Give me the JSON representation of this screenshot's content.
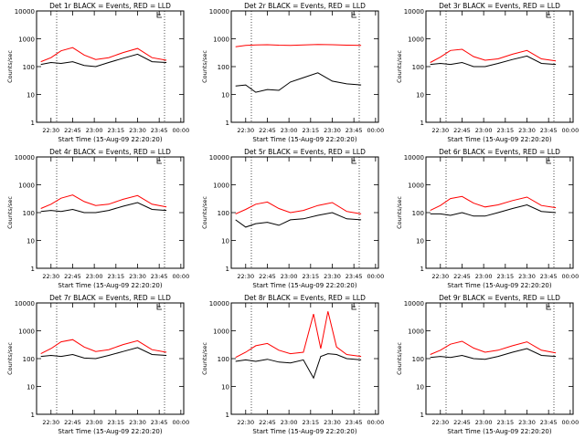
{
  "chart_data": [
    {
      "type": "line",
      "title": "Det 1r BLACK = Events, RED = LLD",
      "ylabel": "Counts/sec",
      "xlabel": "Start Time (15-Aug-09 22:20:20)",
      "x_ticks": [
        "22:30",
        "22:45",
        "23:00",
        "23:15",
        "23:30",
        "23:45",
        "00:00"
      ],
      "y_ticks": [
        "1",
        "10",
        "100",
        "1000",
        "10000"
      ],
      "ylim": [
        1,
        10000
      ],
      "y_scale": "log",
      "x": [
        "22:23",
        "22:30",
        "22:37",
        "22:45",
        "22:53",
        "23:01",
        "23:10",
        "23:20",
        "23:30",
        "23:40",
        "23:50"
      ],
      "series": [
        {
          "name": "RED",
          "values": [
            150,
            210,
            370,
            480,
            260,
            180,
            210,
            320,
            450,
            210,
            170
          ]
        },
        {
          "name": "BLACK",
          "values": [
            120,
            140,
            130,
            150,
            110,
            100,
            140,
            200,
            280,
            150,
            140
          ]
        }
      ]
    },
    {
      "type": "line",
      "title": "Det 2r BLACK = Events, RED = LLD",
      "ylabel": "Counts/sec",
      "xlabel": "Start Time (15-Aug-09 22:20:20)",
      "x_ticks": [
        "22:30",
        "22:45",
        "23:00",
        "23:15",
        "23:30",
        "23:45",
        "00:00"
      ],
      "y_ticks": [
        "1",
        "10",
        "100",
        "1000",
        "10000"
      ],
      "ylim": [
        1,
        10000
      ],
      "y_scale": "log",
      "x": [
        "22:23",
        "22:30",
        "22:37",
        "22:45",
        "22:53",
        "23:01",
        "23:10",
        "23:20",
        "23:30",
        "23:40",
        "23:50"
      ],
      "series": [
        {
          "name": "RED",
          "values": [
            520,
            580,
            600,
            610,
            590,
            580,
            600,
            620,
            610,
            590,
            580
          ]
        },
        {
          "name": "BLACK",
          "values": [
            20,
            22,
            12,
            15,
            14,
            28,
            40,
            60,
            30,
            24,
            22
          ]
        }
      ]
    },
    {
      "type": "line",
      "title": "Det 3r BLACK = Events, RED = LLD",
      "ylabel": "Counts/sec",
      "xlabel": "Start Time (15-Aug-09 22:20:20)",
      "x_ticks": [
        "22:30",
        "22:45",
        "23:00",
        "23:15",
        "23:30",
        "23:45",
        "00:00"
      ],
      "y_ticks": [
        "1",
        "10",
        "100",
        "1000",
        "10000"
      ],
      "ylim": [
        1,
        10000
      ],
      "y_scale": "log",
      "x": [
        "22:23",
        "22:30",
        "22:37",
        "22:45",
        "22:53",
        "23:01",
        "23:10",
        "23:20",
        "23:30",
        "23:40",
        "23:50"
      ],
      "series": [
        {
          "name": "RED",
          "values": [
            140,
            220,
            380,
            420,
            230,
            170,
            190,
            280,
            380,
            190,
            160
          ]
        },
        {
          "name": "BLACK",
          "values": [
            120,
            130,
            120,
            140,
            100,
            100,
            130,
            180,
            240,
            130,
            120
          ]
        }
      ]
    },
    {
      "type": "line",
      "title": "Det 4r BLACK = Events, RED = LLD",
      "ylabel": "Counts/sec",
      "xlabel": "Start Time (15-Aug-09 22:20:20)",
      "x_ticks": [
        "22:30",
        "22:45",
        "23:00",
        "23:15",
        "23:30",
        "23:45",
        "00:00"
      ],
      "y_ticks": [
        "1",
        "10",
        "100",
        "1000",
        "10000"
      ],
      "ylim": [
        1,
        10000
      ],
      "y_scale": "log",
      "x": [
        "22:23",
        "22:30",
        "22:37",
        "22:45",
        "22:53",
        "23:01",
        "23:10",
        "23:20",
        "23:30",
        "23:40",
        "23:50"
      ],
      "series": [
        {
          "name": "RED",
          "values": [
            140,
            200,
            330,
            430,
            250,
            180,
            200,
            300,
            410,
            200,
            160
          ]
        },
        {
          "name": "BLACK",
          "values": [
            110,
            120,
            110,
            130,
            100,
            100,
            120,
            170,
            230,
            130,
            120
          ]
        }
      ]
    },
    {
      "type": "line",
      "title": "Det 5r BLACK = Events, RED = LLD",
      "ylabel": "Counts/sec",
      "xlabel": "Start Time (15-Aug-09 22:20:20)",
      "x_ticks": [
        "22:30",
        "22:45",
        "23:00",
        "23:15",
        "23:30",
        "23:45",
        "00:00"
      ],
      "y_ticks": [
        "1",
        "10",
        "100",
        "1000",
        "10000"
      ],
      "ylim": [
        1,
        10000
      ],
      "y_scale": "log",
      "x": [
        "22:23",
        "22:30",
        "22:37",
        "22:45",
        "22:53",
        "23:01",
        "23:10",
        "23:20",
        "23:30",
        "23:40",
        "23:50"
      ],
      "series": [
        {
          "name": "RED",
          "values": [
            90,
            130,
            200,
            240,
            140,
            100,
            120,
            180,
            230,
            110,
            90
          ]
        },
        {
          "name": "BLACK",
          "values": [
            55,
            30,
            40,
            45,
            35,
            55,
            60,
            80,
            100,
            60,
            55
          ]
        }
      ]
    },
    {
      "type": "line",
      "title": "Det 6r BLACK = Events, RED = LLD",
      "ylabel": "Counts/sec",
      "xlabel": "Start Time (15-Aug-09 22:20:20)",
      "x_ticks": [
        "22:30",
        "22:45",
        "23:00",
        "23:15",
        "23:30",
        "23:45",
        "00:00"
      ],
      "y_ticks": [
        "1",
        "10",
        "100",
        "1000",
        "10000"
      ],
      "ylim": [
        1,
        10000
      ],
      "y_scale": "log",
      "x": [
        "22:23",
        "22:30",
        "22:37",
        "22:45",
        "22:53",
        "23:01",
        "23:10",
        "23:20",
        "23:30",
        "23:40",
        "23:50"
      ],
      "series": [
        {
          "name": "RED",
          "values": [
            120,
            180,
            320,
            380,
            220,
            160,
            190,
            270,
            360,
            180,
            150
          ]
        },
        {
          "name": "BLACK",
          "values": [
            90,
            90,
            80,
            100,
            75,
            75,
            100,
            140,
            190,
            110,
            100
          ]
        }
      ]
    },
    {
      "type": "line",
      "title": "Det 7r BLACK = Events, RED = LLD",
      "ylabel": "Counts/sec",
      "xlabel": "Start Time (15-Aug-09 22:20:20)",
      "x_ticks": [
        "22:30",
        "22:45",
        "23:00",
        "23:15",
        "23:30",
        "23:45",
        "00:00"
      ],
      "y_ticks": [
        "1",
        "10",
        "100",
        "1000",
        "10000"
      ],
      "ylim": [
        1,
        10000
      ],
      "y_scale": "log",
      "x": [
        "22:23",
        "22:30",
        "22:37",
        "22:45",
        "22:53",
        "23:01",
        "23:10",
        "23:20",
        "23:30",
        "23:40",
        "23:50"
      ],
      "series": [
        {
          "name": "RED",
          "values": [
            150,
            230,
            400,
            480,
            260,
            180,
            210,
            320,
            440,
            210,
            170
          ]
        },
        {
          "name": "BLACK",
          "values": [
            120,
            130,
            120,
            140,
            105,
            100,
            130,
            180,
            250,
            140,
            130
          ]
        }
      ]
    },
    {
      "type": "line",
      "title": "Det 8r BLACK = Events, RED = LLD",
      "ylabel": "Counts/sec",
      "xlabel": "Start Time (15-Aug-09 22:20:20)",
      "x_ticks": [
        "22:30",
        "22:45",
        "23:00",
        "23:15",
        "23:30",
        "23:45",
        "00:00"
      ],
      "y_ticks": [
        "1",
        "10",
        "100",
        "1000",
        "10000"
      ],
      "ylim": [
        1,
        10000
      ],
      "y_scale": "log",
      "x": [
        "22:23",
        "22:30",
        "22:37",
        "22:45",
        "22:53",
        "23:01",
        "23:10",
        "23:17",
        "23:22",
        "23:27",
        "23:33",
        "23:40",
        "23:50"
      ],
      "series": [
        {
          "name": "RED",
          "values": [
            110,
            170,
            290,
            350,
            200,
            150,
            170,
            4000,
            230,
            5000,
            260,
            140,
            120
          ]
        },
        {
          "name": "BLACK",
          "values": [
            80,
            90,
            80,
            95,
            75,
            70,
            90,
            20,
            120,
            150,
            140,
            100,
            90
          ]
        }
      ]
    },
    {
      "type": "line",
      "title": "Det 9r BLACK = Events, RED = LLD",
      "ylabel": "Counts/sec",
      "xlabel": "Start Time (15-Aug-09 22:20:20)",
      "x_ticks": [
        "22:30",
        "22:45",
        "23:00",
        "23:15",
        "23:30",
        "23:45",
        "00:00"
      ],
      "y_ticks": [
        "1",
        "10",
        "100",
        "1000",
        "10000"
      ],
      "ylim": [
        1,
        10000
      ],
      "y_scale": "log",
      "x": [
        "22:23",
        "22:30",
        "22:37",
        "22:45",
        "22:53",
        "23:01",
        "23:10",
        "23:20",
        "23:30",
        "23:40",
        "23:50"
      ],
      "series": [
        {
          "name": "RED",
          "values": [
            140,
            200,
            330,
            420,
            240,
            170,
            200,
            290,
            400,
            200,
            160
          ]
        },
        {
          "name": "BLACK",
          "values": [
            110,
            120,
            110,
            130,
            100,
            95,
            120,
            170,
            230,
            130,
            120
          ]
        }
      ]
    }
  ]
}
